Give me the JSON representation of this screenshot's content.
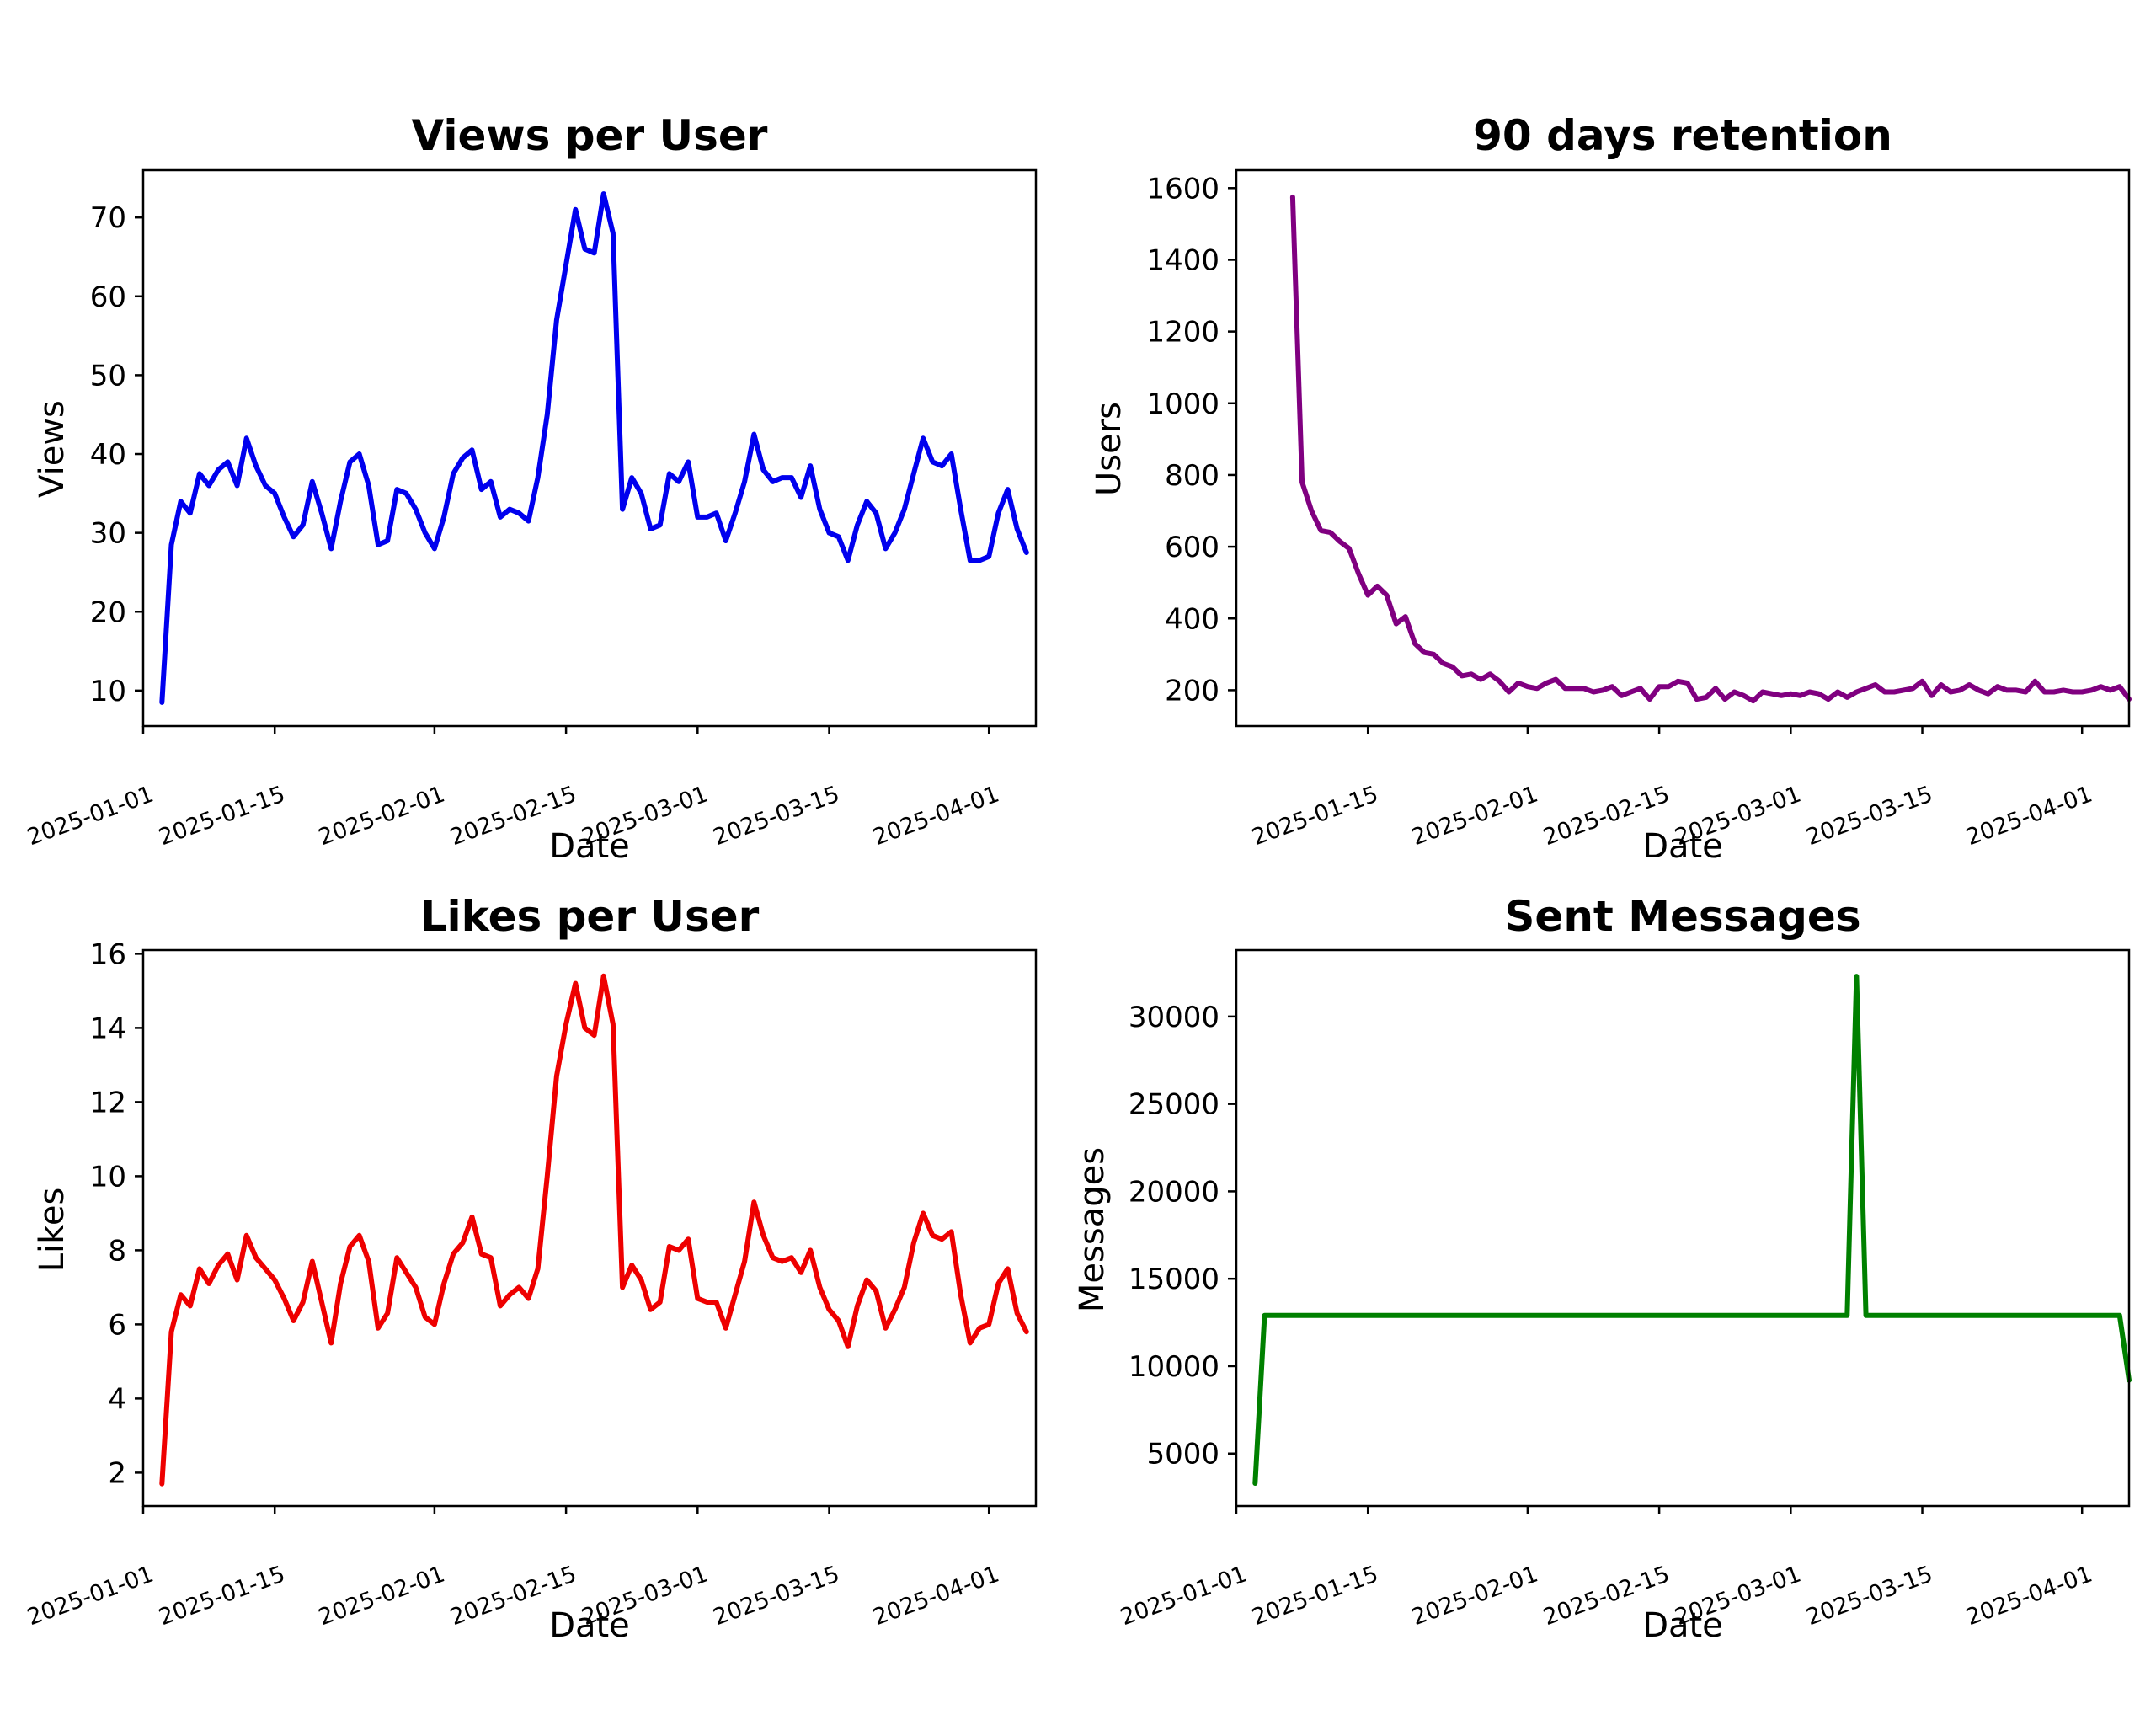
{
  "chart_data": [
    {
      "type": "line",
      "title": "Views per User",
      "xlabel": "Date",
      "ylabel": "Views",
      "color": "#0000ee",
      "xlim": [
        "2025-01-01",
        "2025-04-06"
      ],
      "ylim": [
        5.5,
        76
      ],
      "xticks": [
        "2025-01-01",
        "2025-01-15",
        "2025-02-01",
        "2025-02-15",
        "2025-03-01",
        "2025-03-15",
        "2025-04-01"
      ],
      "yticks": [
        10,
        20,
        30,
        40,
        50,
        60,
        70
      ],
      "series": [
        {
          "x": [
            "2025-01-03",
            "2025-01-04",
            "2025-01-05",
            "2025-01-06",
            "2025-01-07",
            "2025-01-08",
            "2025-01-09",
            "2025-01-10",
            "2025-01-11",
            "2025-01-12",
            "2025-01-13",
            "2025-01-14",
            "2025-01-15",
            "2025-01-16",
            "2025-01-17",
            "2025-01-18",
            "2025-01-19",
            "2025-01-20",
            "2025-01-21",
            "2025-01-22",
            "2025-01-23",
            "2025-01-24",
            "2025-01-25",
            "2025-01-26",
            "2025-01-27",
            "2025-01-28",
            "2025-01-29",
            "2025-01-30",
            "2025-01-31",
            "2025-02-01",
            "2025-02-02",
            "2025-02-03",
            "2025-02-04",
            "2025-02-05",
            "2025-02-06",
            "2025-02-07",
            "2025-02-08",
            "2025-02-09",
            "2025-02-10",
            "2025-02-11",
            "2025-02-12",
            "2025-02-13",
            "2025-02-14",
            "2025-02-15",
            "2025-02-16",
            "2025-02-17",
            "2025-02-18",
            "2025-02-19",
            "2025-02-20",
            "2025-02-21",
            "2025-02-22",
            "2025-02-23",
            "2025-02-24",
            "2025-02-25",
            "2025-02-26",
            "2025-02-27",
            "2025-02-28",
            "2025-03-01",
            "2025-03-02",
            "2025-03-03",
            "2025-03-04",
            "2025-03-05",
            "2025-03-06",
            "2025-03-07",
            "2025-03-08",
            "2025-03-09",
            "2025-03-10",
            "2025-03-11",
            "2025-03-12",
            "2025-03-13",
            "2025-03-14",
            "2025-03-15",
            "2025-03-16",
            "2025-03-17",
            "2025-03-18",
            "2025-03-19",
            "2025-03-20",
            "2025-03-21",
            "2025-03-22",
            "2025-03-23",
            "2025-03-24",
            "2025-03-25",
            "2025-03-26",
            "2025-03-27",
            "2025-03-28",
            "2025-03-29",
            "2025-03-30",
            "2025-03-31",
            "2025-04-01",
            "2025-04-02",
            "2025-04-03",
            "2025-04-04",
            "2025-04-05"
          ],
          "y": [
            8.5,
            28.5,
            34,
            32.5,
            37.5,
            36,
            38,
            39,
            36,
            42,
            38.5,
            36,
            35,
            32,
            29.5,
            31,
            36.5,
            32.5,
            28,
            34,
            39,
            40,
            36,
            28.5,
            29,
            35.5,
            35,
            33,
            30,
            28,
            32,
            37.5,
            39.5,
            40.5,
            35.5,
            36.5,
            32,
            33,
            32.5,
            31.5,
            37,
            45,
            57,
            64,
            71,
            66,
            65.5,
            73,
            68,
            33,
            37,
            35,
            30.5,
            31,
            37.5,
            36.5,
            39,
            32,
            32,
            32.5,
            29,
            32.5,
            36.5,
            42.5,
            38,
            36.5,
            37,
            37,
            34.5,
            38.5,
            33,
            30,
            29.5,
            26.5,
            31,
            34,
            32.5,
            28,
            30,
            33,
            37.5,
            42,
            39,
            38.5,
            40,
            33,
            26.5,
            26.5,
            27,
            32.5,
            35.5,
            30.5,
            27.5
          ]
        }
      ]
    },
    {
      "type": "line",
      "title": "90 days retention",
      "xlabel": "Date",
      "ylabel": "Users",
      "color": "#800080",
      "xlim": [
        "2025-01-01",
        "2025-04-06"
      ],
      "ylim": [
        100,
        1650
      ],
      "xticks": [
        "2025-01-15",
        "2025-02-01",
        "2025-02-15",
        "2025-03-01",
        "2025-03-15",
        "2025-04-01"
      ],
      "yticks": [
        200,
        400,
        600,
        800,
        1000,
        1200,
        1400,
        1600
      ],
      "series": [
        {
          "x": [
            "2025-01-07",
            "2025-01-08",
            "2025-01-09",
            "2025-01-10",
            "2025-01-11",
            "2025-01-12",
            "2025-01-13",
            "2025-01-14",
            "2025-01-15",
            "2025-01-16",
            "2025-01-17",
            "2025-01-18",
            "2025-01-19",
            "2025-01-20",
            "2025-01-21",
            "2025-01-22",
            "2025-01-23",
            "2025-01-24",
            "2025-01-25",
            "2025-01-26",
            "2025-01-27",
            "2025-01-28",
            "2025-01-29",
            "2025-01-30",
            "2025-01-31",
            "2025-02-01",
            "2025-02-02",
            "2025-02-03",
            "2025-02-04",
            "2025-02-05",
            "2025-02-06",
            "2025-02-07",
            "2025-02-08",
            "2025-02-09",
            "2025-02-10",
            "2025-02-11",
            "2025-02-12",
            "2025-02-13",
            "2025-02-14",
            "2025-02-15",
            "2025-02-16",
            "2025-02-17",
            "2025-02-18",
            "2025-02-19",
            "2025-02-20",
            "2025-02-21",
            "2025-02-22",
            "2025-02-23",
            "2025-02-24",
            "2025-02-25",
            "2025-02-26",
            "2025-02-27",
            "2025-02-28",
            "2025-03-01",
            "2025-03-02",
            "2025-03-03",
            "2025-03-04",
            "2025-03-05",
            "2025-03-06",
            "2025-03-07",
            "2025-03-08",
            "2025-03-09",
            "2025-03-10",
            "2025-03-11",
            "2025-03-12",
            "2025-03-13",
            "2025-03-14",
            "2025-03-15",
            "2025-03-16",
            "2025-03-17",
            "2025-03-18",
            "2025-03-19",
            "2025-03-20",
            "2025-03-21",
            "2025-03-22",
            "2025-03-23",
            "2025-03-24",
            "2025-03-25",
            "2025-03-26",
            "2025-03-27",
            "2025-03-28",
            "2025-03-29",
            "2025-03-30",
            "2025-03-31",
            "2025-04-01",
            "2025-04-02",
            "2025-04-03",
            "2025-04-04",
            "2025-04-05",
            "2025-04-06"
          ],
          "y": [
            1575,
            780,
            700,
            645,
            640,
            615,
            595,
            525,
            465,
            490,
            465,
            385,
            405,
            330,
            305,
            300,
            275,
            265,
            240,
            245,
            230,
            245,
            225,
            195,
            220,
            210,
            205,
            220,
            230,
            205,
            205,
            205,
            195,
            200,
            210,
            185,
            195,
            205,
            175,
            210,
            210,
            225,
            220,
            175,
            180,
            205,
            175,
            195,
            185,
            170,
            195,
            190,
            185,
            190,
            185,
            195,
            190,
            175,
            195,
            180,
            195,
            205,
            215,
            195,
            195,
            200,
            205,
            225,
            185,
            215,
            195,
            200,
            215,
            200,
            190,
            210,
            200,
            200,
            195,
            225,
            195,
            195,
            200,
            195,
            195,
            200,
            210,
            200,
            210,
            175
          ]
        }
      ]
    },
    {
      "type": "line",
      "title": "Likes per User",
      "xlabel": "Date",
      "ylabel": "Likes",
      "color": "#ee0000",
      "xlim": [
        "2025-01-01",
        "2025-04-06"
      ],
      "ylim": [
        1.1,
        16.1
      ],
      "xticks": [
        "2025-01-01",
        "2025-01-15",
        "2025-02-01",
        "2025-02-15",
        "2025-03-01",
        "2025-03-15",
        "2025-04-01"
      ],
      "yticks": [
        2,
        4,
        6,
        8,
        10,
        12,
        14,
        16
      ],
      "series": [
        {
          "x": [
            "2025-01-03",
            "2025-01-04",
            "2025-01-05",
            "2025-01-06",
            "2025-01-07",
            "2025-01-08",
            "2025-01-09",
            "2025-01-10",
            "2025-01-11",
            "2025-01-12",
            "2025-01-13",
            "2025-01-14",
            "2025-01-15",
            "2025-01-16",
            "2025-01-17",
            "2025-01-18",
            "2025-01-19",
            "2025-01-20",
            "2025-01-21",
            "2025-01-22",
            "2025-01-23",
            "2025-01-24",
            "2025-01-25",
            "2025-01-26",
            "2025-01-27",
            "2025-01-28",
            "2025-01-29",
            "2025-01-30",
            "2025-01-31",
            "2025-02-01",
            "2025-02-02",
            "2025-02-03",
            "2025-02-04",
            "2025-02-05",
            "2025-02-06",
            "2025-02-07",
            "2025-02-08",
            "2025-02-09",
            "2025-02-10",
            "2025-02-11",
            "2025-02-12",
            "2025-02-13",
            "2025-02-14",
            "2025-02-15",
            "2025-02-16",
            "2025-02-17",
            "2025-02-18",
            "2025-02-19",
            "2025-02-20",
            "2025-02-21",
            "2025-02-22",
            "2025-02-23",
            "2025-02-24",
            "2025-02-25",
            "2025-02-26",
            "2025-02-27",
            "2025-02-28",
            "2025-03-01",
            "2025-03-02",
            "2025-03-03",
            "2025-03-04",
            "2025-03-05",
            "2025-03-06",
            "2025-03-07",
            "2025-03-08",
            "2025-03-09",
            "2025-03-10",
            "2025-03-11",
            "2025-03-12",
            "2025-03-13",
            "2025-03-14",
            "2025-03-15",
            "2025-03-16",
            "2025-03-17",
            "2025-03-18",
            "2025-03-19",
            "2025-03-20",
            "2025-03-21",
            "2025-03-22",
            "2025-03-23",
            "2025-03-24",
            "2025-03-25",
            "2025-03-26",
            "2025-03-27",
            "2025-03-28",
            "2025-03-29",
            "2025-03-30",
            "2025-03-31",
            "2025-04-01",
            "2025-04-02",
            "2025-04-03",
            "2025-04-04",
            "2025-04-05"
          ],
          "y": [
            1.7,
            5.8,
            6.8,
            6.5,
            7.5,
            7.1,
            7.6,
            7.9,
            7.2,
            8.4,
            7.8,
            7.5,
            7.2,
            6.7,
            6.1,
            6.6,
            7.7,
            6.6,
            5.5,
            7.1,
            8.1,
            8.4,
            7.7,
            5.9,
            6.3,
            7.8,
            7.4,
            7,
            6.2,
            6,
            7.1,
            7.9,
            8.2,
            8.9,
            7.9,
            7.8,
            6.5,
            6.8,
            7,
            6.7,
            7.5,
            10,
            12.7,
            14.1,
            15.2,
            14,
            13.8,
            15.4,
            14.1,
            7,
            7.6,
            7.2,
            6.4,
            6.6,
            8.1,
            8,
            8.3,
            6.7,
            6.6,
            6.6,
            5.9,
            6.8,
            7.7,
            9.3,
            8.4,
            7.8,
            7.7,
            7.8,
            7.4,
            8,
            7,
            6.4,
            6.1,
            5.4,
            6.5,
            7.2,
            6.9,
            5.9,
            6.4,
            7,
            8.2,
            9,
            8.4,
            8.3,
            8.5,
            6.8,
            5.5,
            5.9,
            6,
            7.1,
            7.5,
            6.3,
            5.8
          ]
        }
      ]
    },
    {
      "type": "line",
      "title": "Sent Messages",
      "xlabel": "Date",
      "ylabel": "Messages",
      "color": "#008000",
      "xlim": [
        "2025-01-01",
        "2025-04-06"
      ],
      "ylim": [
        2000,
        33800
      ],
      "xticks": [
        "2025-01-01",
        "2025-01-15",
        "2025-02-01",
        "2025-02-15",
        "2025-03-01",
        "2025-03-15",
        "2025-04-01"
      ],
      "yticks": [
        5000,
        10000,
        15000,
        20000,
        25000,
        30000
      ],
      "series": [
        {
          "x": [
            "2025-01-03",
            "2025-01-04",
            "2025-01-05",
            "2025-03-07",
            "2025-03-08",
            "2025-03-09",
            "2025-04-05",
            "2025-04-06"
          ],
          "y": [
            3300,
            12900,
            12900,
            12900,
            32300,
            12900,
            12900,
            9200
          ]
        }
      ]
    }
  ]
}
